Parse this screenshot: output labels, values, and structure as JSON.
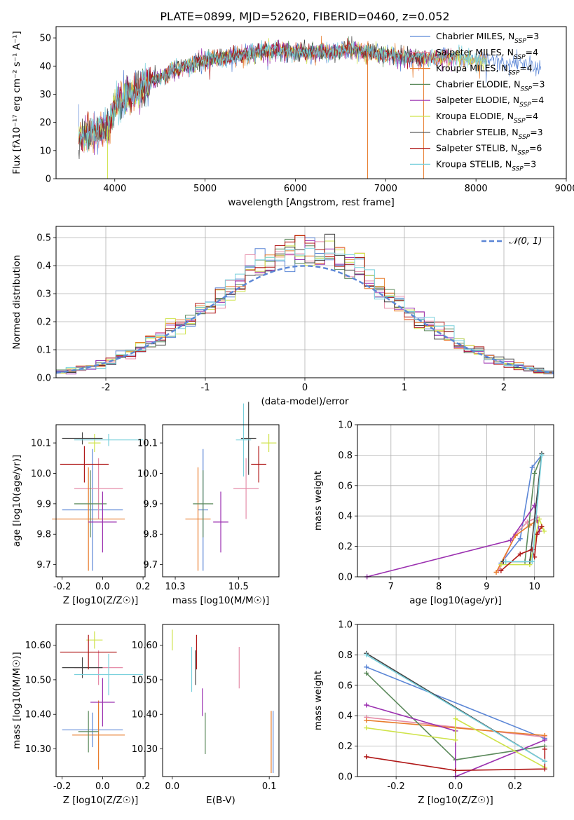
{
  "figure_title": "PLATE=0899, MJD=52620, FIBERID=0460, z=0.052",
  "series_names": [
    "Chabrier MILES, N_SSP=3",
    "Salpeter MILES, N_SSP=4",
    "Kroupa MILES, N_SSP=4",
    "Chabrier ELODIE, N_SSP=3",
    "Salpeter ELODIE, N_SSP=4",
    "Kroupa ELODIE, N_SSP=4",
    "Chabrier STELIB, N_SSP=3",
    "Salpeter STELIB, N_SSP=6",
    "Kroupa STELIB, N_SSP=3"
  ],
  "colors": {
    "Chabrier MILES": "#5b86d6",
    "Salpeter MILES": "#e58ca8",
    "Kroupa MILES": "#e87c2c",
    "Chabrier ELODIE": "#5c8a5c",
    "Salpeter ELODIE": "#9b30b0",
    "Kroupa ELODIE": "#cfe34a",
    "Chabrier STELIB": "#444444",
    "Salpeter STELIB": "#b01818",
    "Kroupa STELIB": "#78d0dc"
  },
  "chart_data": [
    {
      "id": "spectrum",
      "type": "line",
      "xlabel": "wavelength [Angstrom, rest frame]",
      "ylabel": "Flux [fλ10⁻¹⁷ erg cm⁻² s⁻¹ A⁻¹]",
      "xlim": [
        3350,
        9000
      ],
      "ylim": [
        0,
        54
      ],
      "xticks": [
        4000,
        5000,
        6000,
        7000,
        8000,
        9000
      ],
      "yticks": [
        0,
        10,
        20,
        30,
        40,
        50
      ],
      "legend_position": "right",
      "envelope": {
        "x": [
          3600,
          3700,
          3800,
          3900,
          3950,
          4000,
          4100,
          4200,
          4300,
          4400,
          4500,
          4600,
          4800,
          5000,
          5200,
          5400,
          5600,
          5800,
          6000,
          6200,
          6400,
          6600,
          6800,
          7000,
          7200,
          7400,
          7600,
          7800,
          8000,
          8200,
          8400,
          8600,
          8800
        ],
        "y": [
          14,
          16,
          17,
          18,
          20,
          26,
          28,
          30,
          32,
          35,
          36,
          38,
          40,
          42,
          43,
          44,
          45,
          46,
          45,
          45,
          45,
          46,
          45,
          44,
          43,
          43,
          43,
          43,
          42,
          42,
          41,
          40,
          38
        ]
      },
      "dropouts": [
        [
          3920,
          0
        ],
        [
          6800,
          0
        ],
        [
          7420,
          0
        ]
      ]
    },
    {
      "id": "residual_histogram",
      "type": "bar",
      "xlabel": "(data-model)/error",
      "ylabel": "Normed distribution",
      "xlim": [
        -2.5,
        2.5
      ],
      "ylim": [
        0,
        0.54
      ],
      "xticks": [
        -2,
        -1,
        0,
        1,
        2
      ],
      "yticks": [
        0.0,
        0.1,
        0.2,
        0.3,
        0.4,
        0.5
      ],
      "grid": true,
      "legend_position": "top-right",
      "reference_curve": "𝒩(0, 1)",
      "bin_width": 0.1
    },
    {
      "id": "age_vs_Z",
      "type": "scatter",
      "xlabel": "Z [log10(Z/Z☉)]",
      "ylabel": "age  [log10(age/yr)]",
      "xlim": [
        -0.23,
        0.21
      ],
      "ylim": [
        9.66,
        10.16
      ],
      "xticks": [
        -0.2,
        0.0,
        0.2
      ],
      "yticks": [
        9.7,
        9.8,
        9.9,
        10.0,
        10.1
      ],
      "points": [
        {
          "series": "Chabrier MILES",
          "x": -0.05,
          "xerr": 0.15,
          "y": 9.88,
          "yerr": 0.2
        },
        {
          "series": "Salpeter MILES",
          "x": -0.02,
          "xerr": 0.12,
          "y": 9.95,
          "yerr": 0.1
        },
        {
          "series": "Kroupa MILES",
          "x": -0.07,
          "xerr": 0.18,
          "y": 9.85,
          "yerr": 0.17
        },
        {
          "series": "Chabrier ELODIE",
          "x": -0.06,
          "xerr": 0.08,
          "y": 9.9,
          "yerr": 0.11
        },
        {
          "series": "Salpeter ELODIE",
          "x": 0.0,
          "xerr": 0.07,
          "y": 9.84,
          "yerr": 0.1
        },
        {
          "series": "Kroupa ELODIE",
          "x": -0.04,
          "xerr": 0.03,
          "y": 10.1,
          "yerr": 0.03
        },
        {
          "series": "Chabrier STELIB",
          "x": -0.1,
          "xerr": 0.1,
          "y": 10.115,
          "yerr": 0.02
        },
        {
          "series": "Salpeter STELIB",
          "x": -0.09,
          "xerr": 0.12,
          "y": 10.03,
          "yerr": 0.06
        },
        {
          "series": "Kroupa STELIB",
          "x": 0.03,
          "xerr": 0.17,
          "y": 10.11,
          "yerr": 0.02
        }
      ]
    },
    {
      "id": "age_vs_mass",
      "type": "scatter",
      "xlabel": "mass [log10(M/M☉)]",
      "ylabel": "",
      "xlim": [
        10.2,
        10.66
      ],
      "ylim": [
        9.66,
        10.16
      ],
      "xticks": [
        10.25,
        10.5
      ],
      "yticks": [
        9.7,
        9.8,
        9.9,
        10.0,
        10.1
      ],
      "points": [
        {
          "series": "Chabrier MILES",
          "x": 10.36,
          "xerr": 0.02,
          "y": 9.88,
          "yerr": 0.2
        },
        {
          "series": "Salpeter MILES",
          "x": 10.53,
          "xerr": 0.05,
          "y": 9.95,
          "yerr": 0.1
        },
        {
          "series": "Kroupa MILES",
          "x": 10.34,
          "xerr": 0.05,
          "y": 9.85,
          "yerr": 0.17
        },
        {
          "series": "Chabrier ELODIE",
          "x": 10.36,
          "xerr": 0.04,
          "y": 9.9,
          "yerr": 0.11
        },
        {
          "series": "Salpeter ELODIE",
          "x": 10.43,
          "xerr": 0.03,
          "y": 9.84,
          "yerr": 0.1
        },
        {
          "series": "Kroupa ELODIE",
          "x": 10.62,
          "xerr": 0.03,
          "y": 10.1,
          "yerr": 0.03
        },
        {
          "series": "Chabrier STELIB",
          "x": 10.54,
          "xerr": 0.03,
          "y": 10.115,
          "yerr": 0.12
        },
        {
          "series": "Salpeter STELIB",
          "x": 10.58,
          "xerr": 0.03,
          "y": 10.03,
          "yerr": 0.06
        },
        {
          "series": "Kroupa STELIB",
          "x": 10.52,
          "xerr": 0.03,
          "y": 10.11,
          "yerr": 0.12
        }
      ]
    },
    {
      "id": "weight_vs_age",
      "type": "line",
      "xlabel": "age  [log10(age/yr)]",
      "ylabel": "mass weight",
      "xlim": [
        6.3,
        10.4
      ],
      "ylim": [
        0,
        1.0
      ],
      "xticks": [
        7,
        8,
        9,
        10
      ],
      "yticks": [
        0.0,
        0.2,
        0.4,
        0.6,
        0.8,
        1.0
      ],
      "grid": true,
      "series": [
        {
          "series": "Chabrier MILES",
          "x": [
            9.3,
            9.7,
            9.95,
            10.15
          ],
          "y": [
            0.09,
            0.25,
            0.72,
            0.8
          ]
        },
        {
          "series": "Salpeter MILES",
          "x": [
            9.25,
            9.6,
            9.85,
            10.05
          ],
          "y": [
            0.04,
            0.28,
            0.36,
            0.39
          ]
        },
        {
          "series": "Kroupa MILES",
          "x": [
            9.2,
            9.6,
            9.9,
            10.05
          ],
          "y": [
            0.03,
            0.27,
            0.34,
            0.37
          ]
        },
        {
          "series": "Chabrier ELODIE",
          "x": [
            9.35,
            9.8,
            10.0,
            10.15
          ],
          "y": [
            0.1,
            0.1,
            0.68,
            0.8
          ]
        },
        {
          "series": "Salpeter ELODIE",
          "x": [
            6.5,
            9.5,
            10.0,
            10.1
          ],
          "y": [
            0.0,
            0.24,
            0.47,
            0.3
          ]
        },
        {
          "series": "Kroupa ELODIE",
          "x": [
            9.3,
            9.9,
            10.1,
            10.2
          ],
          "y": [
            0.08,
            0.08,
            0.38,
            0.3
          ]
        },
        {
          "series": "Chabrier STELIB",
          "x": [
            9.35,
            9.9,
            10.15
          ],
          "y": [
            0.1,
            0.1,
            0.81
          ]
        },
        {
          "series": "Salpeter STELIB",
          "x": [
            9.3,
            9.7,
            9.95,
            10.0,
            10.05,
            10.15
          ],
          "y": [
            0.04,
            0.15,
            0.18,
            0.13,
            0.28,
            0.33
          ]
        },
        {
          "series": "Kroupa STELIB",
          "x": [
            9.4,
            9.95,
            10.15
          ],
          "y": [
            0.1,
            0.1,
            0.8
          ]
        }
      ]
    },
    {
      "id": "mass_vs_Z",
      "type": "scatter",
      "xlabel": "Z [log10(Z/Z☉)]",
      "ylabel": "mass [log10(M/M☉)]",
      "xlim": [
        -0.23,
        0.21
      ],
      "ylim": [
        10.22,
        10.66
      ],
      "xticks": [
        -0.2,
        0.0,
        0.2
      ],
      "yticks": [
        10.3,
        10.4,
        10.5,
        10.6
      ],
      "points": [
        {
          "series": "Chabrier MILES",
          "x": -0.05,
          "xerr": 0.15,
          "y": 10.355,
          "yerr": 0.05
        },
        {
          "series": "Salpeter MILES",
          "x": -0.02,
          "xerr": 0.12,
          "y": 10.535,
          "yerr": 0.05
        },
        {
          "series": "Kroupa MILES",
          "x": -0.02,
          "xerr": 0.13,
          "y": 10.34,
          "yerr": 0.1
        },
        {
          "series": "Chabrier ELODIE",
          "x": -0.07,
          "xerr": 0.05,
          "y": 10.35,
          "yerr": 0.06
        },
        {
          "series": "Salpeter ELODIE",
          "x": 0.0,
          "xerr": 0.06,
          "y": 10.435,
          "yerr": 0.07
        },
        {
          "series": "Kroupa ELODIE",
          "x": -0.04,
          "xerr": 0.04,
          "y": 10.615,
          "yerr": 0.025
        },
        {
          "series": "Chabrier STELIB",
          "x": -0.1,
          "xerr": 0.1,
          "y": 10.535,
          "yerr": 0.03
        },
        {
          "series": "Salpeter STELIB",
          "x": -0.07,
          "xerr": 0.14,
          "y": 10.58,
          "yerr": 0.05
        },
        {
          "series": "Kroupa STELIB",
          "x": 0.03,
          "xerr": 0.17,
          "y": 10.515,
          "yerr": 0.06
        }
      ]
    },
    {
      "id": "mass_vs_EBV",
      "type": "scatter",
      "xlabel": "E(B-V)",
      "ylabel": "",
      "xlim": [
        -0.01,
        0.11
      ],
      "ylim": [
        10.22,
        10.66
      ],
      "xticks": [
        0.0,
        0.1
      ],
      "yticks": [
        10.3,
        10.4,
        10.5,
        10.6
      ],
      "points": [
        {
          "series": "Chabrier MILES",
          "x": 0.104,
          "y": 10.32,
          "yerr": 0.09
        },
        {
          "series": "Salpeter MILES",
          "x": 0.069,
          "y": 10.535,
          "yerr": 0.06
        },
        {
          "series": "Kroupa MILES",
          "x": 0.102,
          "y": 10.32,
          "yerr": 0.09
        },
        {
          "series": "Chabrier ELODIE",
          "x": 0.034,
          "y": 10.345,
          "yerr": 0.06
        },
        {
          "series": "Salpeter ELODIE",
          "x": 0.031,
          "y": 10.435,
          "yerr": 0.04
        },
        {
          "series": "Kroupa ELODIE",
          "x": 0.0,
          "y": 10.615,
          "yerr": 0.03
        },
        {
          "series": "Chabrier STELIB",
          "x": 0.024,
          "y": 10.535,
          "yerr": 0.05
        },
        {
          "series": "Salpeter STELIB",
          "x": 0.025,
          "y": 10.58,
          "yerr": 0.05
        },
        {
          "series": "Kroupa STELIB",
          "x": 0.02,
          "y": 10.53,
          "yerr": 0.065
        }
      ]
    },
    {
      "id": "weight_vs_Z",
      "type": "line",
      "xlabel": "Z [log10(Z/Z☉)]",
      "ylabel": "mass weight",
      "xlim": [
        -0.33,
        0.33
      ],
      "ylim": [
        0,
        1.0
      ],
      "xticks": [
        -0.2,
        0.0,
        0.2
      ],
      "yticks": [
        0.0,
        0.2,
        0.4,
        0.6,
        0.8,
        1.0
      ],
      "grid": true,
      "series": [
        {
          "series": "Chabrier MILES",
          "x": [
            -0.3,
            0.3
          ],
          "y": [
            0.72,
            0.25
          ]
        },
        {
          "series": "Salpeter MILES",
          "x": [
            -0.3,
            0.3
          ],
          "y": [
            0.39,
            0.26
          ]
        },
        {
          "series": "Kroupa MILES",
          "x": [
            -0.3,
            0.3
          ],
          "y": [
            0.37,
            0.27
          ]
        },
        {
          "series": "Chabrier ELODIE",
          "x": [
            -0.3,
            0.0,
            0.3
          ],
          "y": [
            0.68,
            0.11,
            0.2
          ]
        },
        {
          "series": "Salpeter ELODIE",
          "x": [
            -0.3,
            0.0,
            0.0,
            0.3
          ],
          "y": [
            0.47,
            0.3,
            0.0,
            0.24
          ]
        },
        {
          "series": "Kroupa ELODIE",
          "x": [
            -0.3,
            0.0,
            0.0,
            0.3
          ],
          "y": [
            0.32,
            0.24,
            0.38,
            0.06
          ]
        },
        {
          "series": "Chabrier STELIB",
          "x": [
            -0.3,
            0.3
          ],
          "y": [
            0.81,
            0.1
          ]
        },
        {
          "series": "Salpeter STELIB",
          "x": [
            -0.3,
            0.0,
            0.3,
            0.3
          ],
          "y": [
            0.13,
            0.04,
            0.05,
            0.18
          ]
        },
        {
          "series": "Kroupa STELIB",
          "x": [
            -0.3,
            0.3
          ],
          "y": [
            0.8,
            0.1
          ]
        }
      ]
    }
  ]
}
